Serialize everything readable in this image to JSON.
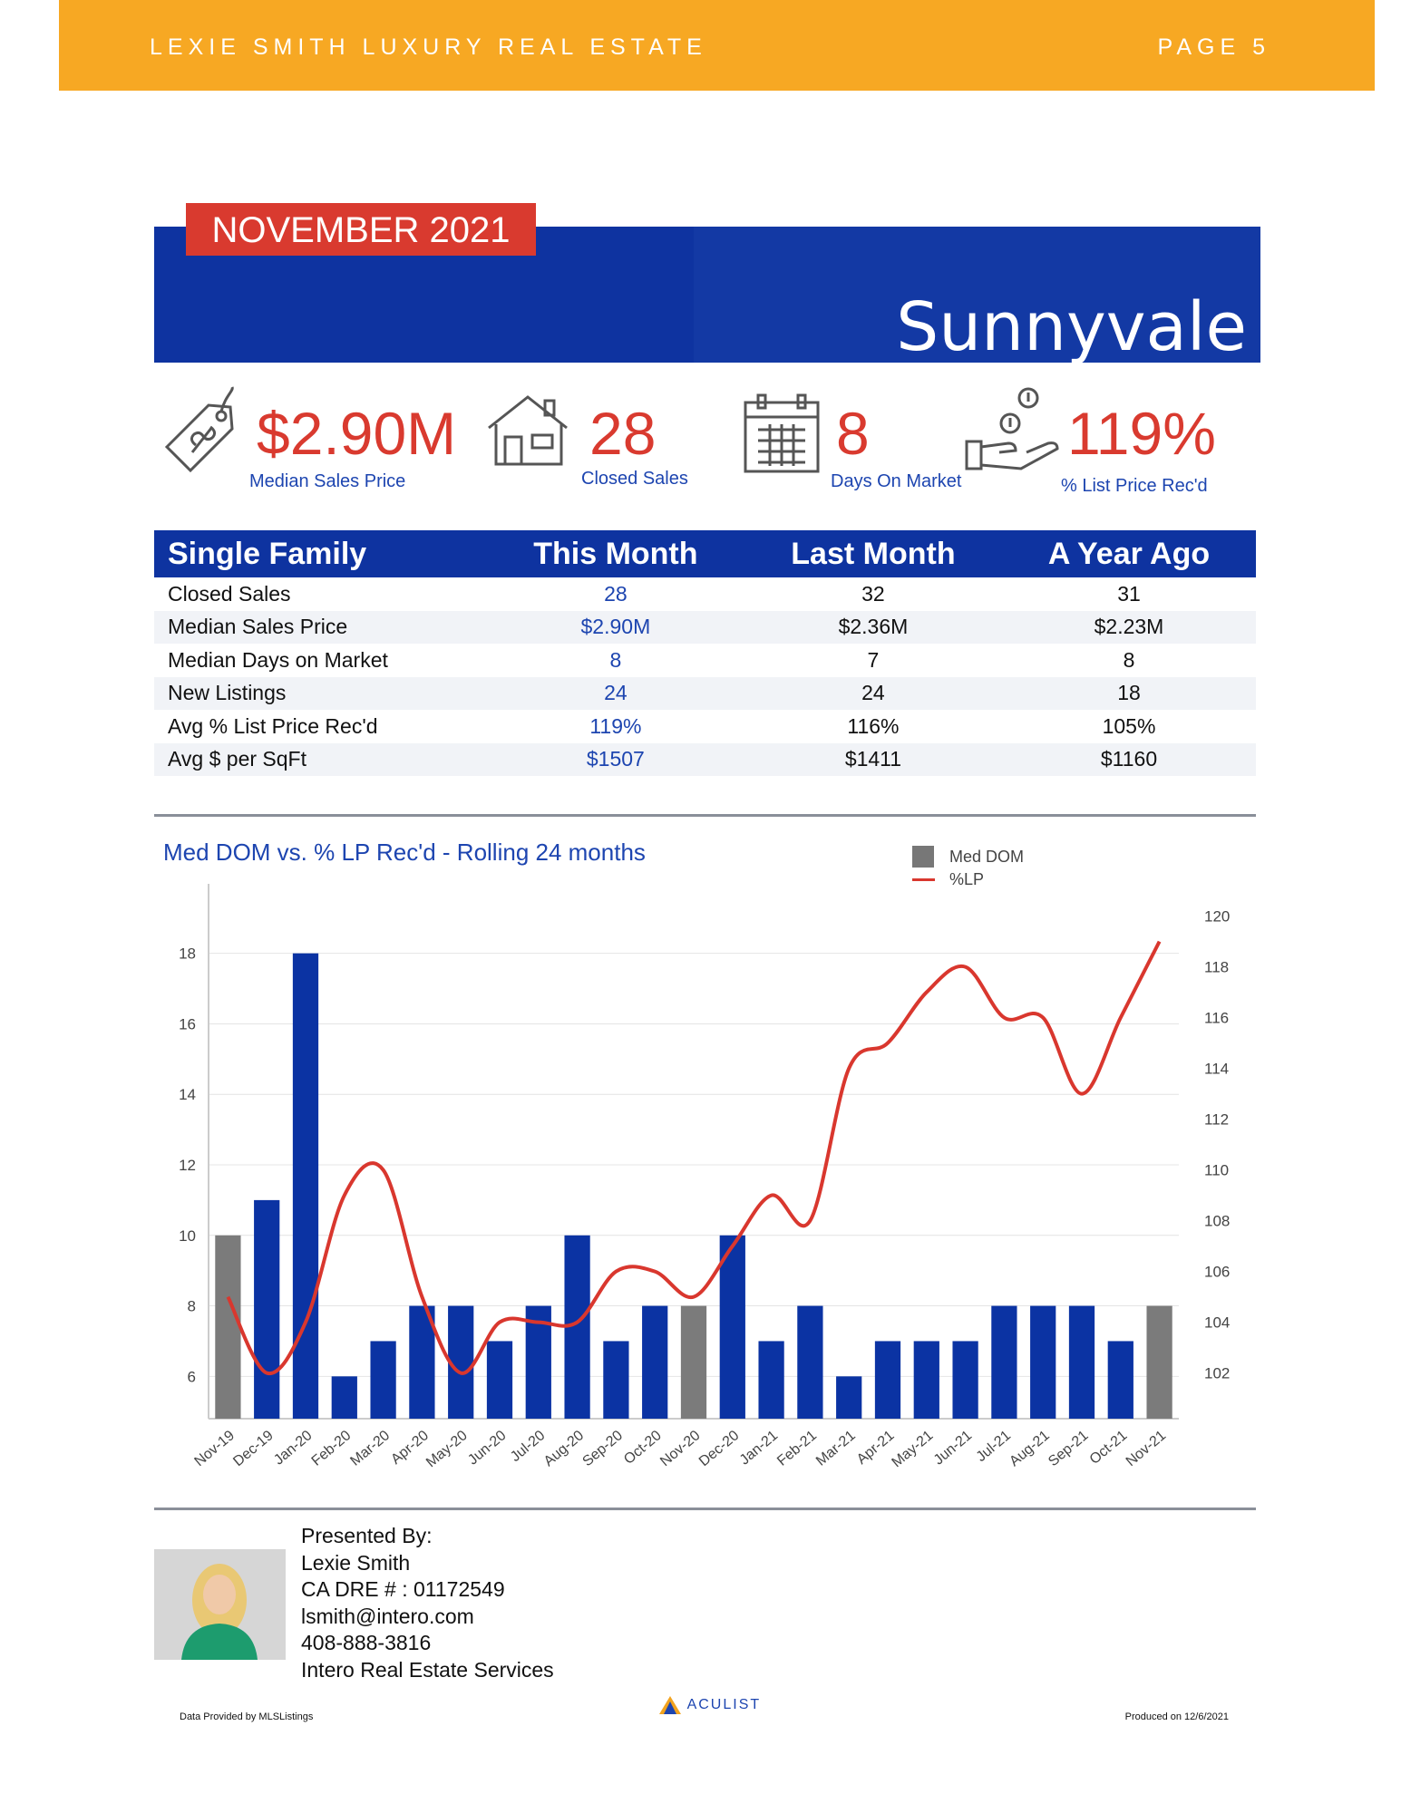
{
  "header": {
    "brand": "LEXIE SMITH LUXURY REAL ESTATE",
    "page": "PAGE 5"
  },
  "hero": {
    "month": "NOVEMBER 2021",
    "city": "Sunnyvale"
  },
  "kpis": [
    {
      "value": "$2.90M",
      "label": "Median Sales Price",
      "icon": "price-tag-icon"
    },
    {
      "value": "28",
      "label": "Closed Sales",
      "icon": "house-icon"
    },
    {
      "value": "8",
      "label": "Days On Market",
      "icon": "calendar-icon"
    },
    {
      "value": "119%",
      "label": "% List Price Rec'd",
      "icon": "hand-coins-icon"
    }
  ],
  "table": {
    "headers": [
      "Single Family",
      "This Month",
      "Last Month",
      "A Year Ago"
    ],
    "rows": [
      [
        "Closed Sales",
        "28",
        "32",
        "31"
      ],
      [
        "Median Sales Price",
        "$2.90M",
        "$2.36M",
        "$2.23M"
      ],
      [
        "Median Days on Market",
        "8",
        "7",
        "8"
      ],
      [
        "New Listings",
        "24",
        "24",
        "18"
      ],
      [
        "Avg % List Price Rec'd",
        "119%",
        "116%",
        "105%"
      ],
      [
        "Avg $ per SqFt",
        "$1507",
        "$1411",
        "$1160"
      ]
    ]
  },
  "chart_data": {
    "type": "bar",
    "title": "Med DOM vs. % LP Rec'd - Rolling 24 months",
    "categories": [
      "Nov-19",
      "Dec-19",
      "Jan-20",
      "Feb-20",
      "Mar-20",
      "Apr-20",
      "May-20",
      "Jun-20",
      "Jul-20",
      "Aug-20",
      "Sep-20",
      "Oct-20",
      "Nov-20",
      "Dec-20",
      "Jan-21",
      "Feb-21",
      "Mar-21",
      "Apr-21",
      "May-21",
      "Jun-21",
      "Jul-21",
      "Aug-21",
      "Sep-21",
      "Oct-21",
      "Nov-21"
    ],
    "series": [
      {
        "name": "Med DOM",
        "type": "bar",
        "axis": "left",
        "values": [
          10,
          11,
          18,
          6,
          7,
          8,
          8,
          7,
          8,
          10,
          7,
          8,
          8,
          10,
          7,
          8,
          6,
          7,
          7,
          7,
          8,
          8,
          8,
          7,
          8
        ],
        "highlight_indices": [
          0,
          12,
          24
        ]
      },
      {
        "name": "%LP",
        "type": "line",
        "axis": "right",
        "values": [
          105,
          102,
          104,
          109,
          110,
          105,
          102,
          104,
          104,
          104,
          106,
          106,
          105,
          107,
          109,
          108,
          114,
          115,
          117,
          118,
          116,
          116,
          113,
          116,
          119
        ]
      }
    ],
    "yticks_left": [
      6,
      8,
      10,
      12,
      14,
      16,
      18
    ],
    "ylim_left": [
      4.8,
      19.2
    ],
    "yticks_right": [
      102,
      104,
      106,
      108,
      110,
      112,
      114,
      116,
      118,
      120
    ],
    "ylim_right": [
      100.2,
      120.2
    ],
    "colors": {
      "bar": "#0b33a3",
      "bar_highlight": "#7b7b7b",
      "line": "#d9372e"
    },
    "legend_placement": "top-right"
  },
  "presenter": {
    "lines": [
      "Presented By:",
      "Lexie Smith",
      "CA DRE # : 01172549",
      "lsmith@intero.com",
      "408-888-3816",
      "Intero Real Estate Services"
    ]
  },
  "footer": {
    "left": "Data Provided by MLSListings",
    "logo": "ACULIST",
    "right": "Produced on 12/6/2021"
  }
}
